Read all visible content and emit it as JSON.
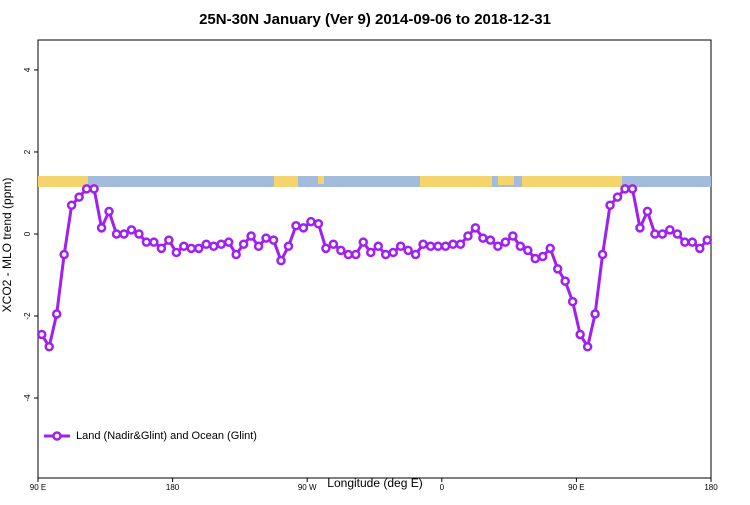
{
  "chart_data": {
    "type": "line",
    "title": "25N-30N January (Ver 9)   2014-09-06 to 2018-12-31",
    "x_label": "Longitude (deg E)",
    "y_label": "XCO2 - MLO trend (ppm)",
    "xlim": [
      90,
      540
    ],
    "xticks": [
      {
        "value": 90,
        "label": "90 E"
      },
      {
        "value": 180,
        "label": "180"
      },
      {
        "value": 270,
        "label": "90 W"
      },
      {
        "value": 360,
        "label": "0"
      },
      {
        "value": 450,
        "label": "90 E"
      },
      {
        "value": 540,
        "label": "180"
      }
    ],
    "ylim": [
      -5.95,
      4.73
    ],
    "yticks": [
      -4,
      -2,
      0,
      2,
      4
    ],
    "legend": "bottom-left",
    "x": [
      92.5,
      97.5,
      102.5,
      107.5,
      112.5,
      117.5,
      122.5,
      127.5,
      132.5,
      137.5,
      142.5,
      147.5,
      152.5,
      157.5,
      162.5,
      167.5,
      172.5,
      177.5,
      182.5,
      187.5,
      192.5,
      197.5,
      202.5,
      207.5,
      212.5,
      217.5,
      222.5,
      227.5,
      232.5,
      237.5,
      242.5,
      247.5,
      252.5,
      257.5,
      262.5,
      267.5,
      272.5,
      277.5,
      282.5,
      287.5,
      292.5,
      297.5,
      302.5,
      307.5,
      312.5,
      317.5,
      322.5,
      327.5,
      332.5,
      337.5,
      342.5,
      347.5,
      352.5,
      357.5,
      362.5,
      367.5,
      372.5,
      377.5,
      382.5,
      387.5,
      392.5,
      397.5,
      402.5,
      407.5,
      412.5,
      417.5,
      422.5,
      427.5,
      432.5,
      437.5,
      442.5,
      447.5,
      452.5,
      457.5,
      462.5,
      467.5,
      472.5,
      477.5,
      482.5,
      487.5,
      492.5,
      497.5,
      502.5,
      507.5,
      512.5,
      517.5,
      522.5,
      527.5,
      532.5,
      537.5
    ],
    "series": [
      {
        "name": "Land (Nadir&Glint) and Ocean (Glint)",
        "color": "#a020f0",
        "values": [
          -2.45,
          -2.75,
          -1.95,
          -0.5,
          0.7,
          0.9,
          1.1,
          1.1,
          0.15,
          0.55,
          0.0,
          0.0,
          0.1,
          0.0,
          -0.2,
          -0.2,
          -0.35,
          -0.15,
          -0.45,
          -0.3,
          -0.35,
          -0.35,
          -0.25,
          -0.3,
          -0.25,
          -0.2,
          -0.5,
          -0.25,
          -0.05,
          -0.3,
          -0.1,
          -0.15,
          -0.65,
          -0.3,
          0.2,
          0.15,
          0.3,
          0.25,
          -0.35,
          -0.25,
          -0.4,
          -0.5,
          -0.5,
          -0.2,
          -0.45,
          -0.3,
          -0.5,
          -0.45,
          -0.3,
          -0.4,
          -0.5,
          -0.25,
          -0.3,
          -0.3,
          -0.3,
          -0.25,
          -0.25,
          -0.05,
          0.15,
          -0.1,
          -0.15,
          -0.3,
          -0.2,
          -0.05,
          -0.3,
          -0.4,
          -0.6,
          -0.55,
          -0.35,
          -0.85,
          -1.15,
          -1.65,
          -2.45,
          -2.75,
          -1.95,
          -0.5,
          0.7,
          0.9,
          1.1,
          1.1,
          0.15,
          0.55,
          0.0,
          0.0,
          0.1,
          0.0,
          -0.2,
          -0.2,
          -0.35,
          -0.15
        ]
      }
    ]
  }
}
